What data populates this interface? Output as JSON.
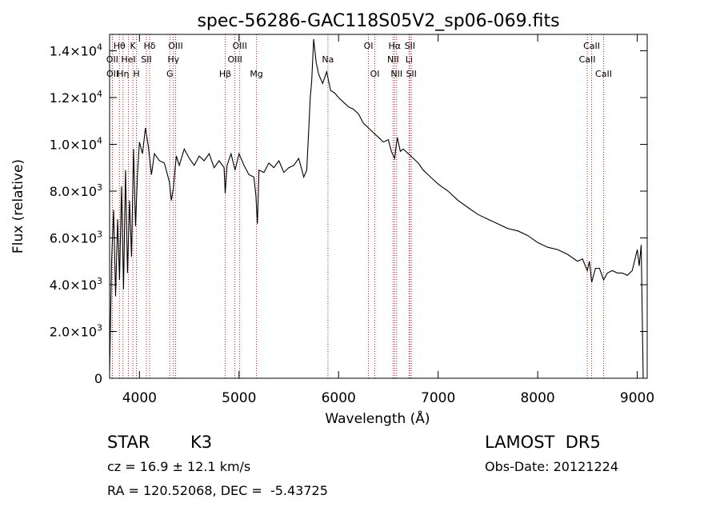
{
  "chart_data": {
    "type": "line",
    "title": "spec-56286-GAC118S05V2_sp06-069.fits",
    "xlabel": "Wavelength (Å)",
    "ylabel": "Flux (relative)",
    "xlim": [
      3700,
      9100
    ],
    "ylim": [
      0,
      14700
    ],
    "xticks": [
      {
        "value": 4000,
        "label": "4000"
      },
      {
        "value": 5000,
        "label": "5000"
      },
      {
        "value": 6000,
        "label": "6000"
      },
      {
        "value": 7000,
        "label": "7000"
      },
      {
        "value": 8000,
        "label": "8000"
      },
      {
        "value": 9000,
        "label": "9000"
      }
    ],
    "yticks": [
      {
        "value": 0,
        "mant": "0",
        "exp": ""
      },
      {
        "value": 2000,
        "mant": "2.0×10",
        "exp": "3"
      },
      {
        "value": 4000,
        "mant": "4.0×10",
        "exp": "3"
      },
      {
        "value": 6000,
        "mant": "6.0×10",
        "exp": "3"
      },
      {
        "value": 8000,
        "mant": "8.0×10",
        "exp": "3"
      },
      {
        "value": 10000,
        "mant": "1.0×10",
        "exp": "4"
      },
      {
        "value": 12000,
        "mant": "1.2×10",
        "exp": "4"
      },
      {
        "value": 14000,
        "mant": "1.4×10",
        "exp": "4"
      }
    ],
    "grid": false,
    "line_color": "#000000",
    "marker_color": "#b22222",
    "spectrum": {
      "x": [
        3700,
        3720,
        3740,
        3760,
        3780,
        3800,
        3820,
        3840,
        3860,
        3880,
        3900,
        3920,
        3940,
        3960,
        3980,
        4000,
        4030,
        4060,
        4090,
        4120,
        4150,
        4200,
        4250,
        4300,
        4320,
        4340,
        4370,
        4400,
        4450,
        4500,
        4550,
        4600,
        4650,
        4700,
        4750,
        4800,
        4850,
        4861,
        4880,
        4920,
        4960,
        5000,
        5050,
        5100,
        5150,
        5170,
        5185,
        5200,
        5250,
        5300,
        5350,
        5400,
        5450,
        5500,
        5550,
        5600,
        5650,
        5680,
        5700,
        5715,
        5730,
        5750,
        5775,
        5800,
        5840,
        5880,
        5920,
        5960,
        6000,
        6050,
        6100,
        6150,
        6200,
        6250,
        6300,
        6350,
        6400,
        6450,
        6500,
        6530,
        6563,
        6590,
        6620,
        6650,
        6700,
        6750,
        6800,
        6850,
        6900,
        6950,
        7000,
        7100,
        7200,
        7300,
        7400,
        7500,
        7600,
        7700,
        7800,
        7900,
        8000,
        8100,
        8200,
        8300,
        8400,
        8450,
        8498,
        8520,
        8542,
        8580,
        8620,
        8662,
        8700,
        8750,
        8800,
        8850,
        8900,
        8950,
        9000,
        9020,
        9040,
        9060
      ],
      "y": [
        300,
        5000,
        7200,
        3500,
        6800,
        4200,
        8200,
        3800,
        8900,
        4500,
        7600,
        5200,
        9800,
        6500,
        8700,
        10100,
        9600,
        10700,
        9900,
        8700,
        9600,
        9300,
        9200,
        8400,
        7600,
        8100,
        9500,
        9100,
        9800,
        9400,
        9100,
        9500,
        9300,
        9600,
        9000,
        9300,
        9000,
        7900,
        9100,
        9600,
        8900,
        9600,
        9100,
        8700,
        8600,
        7800,
        6600,
        8900,
        8800,
        9200,
        9000,
        9300,
        8800,
        9000,
        9100,
        9400,
        8600,
        8900,
        10600,
        12000,
        12700,
        14500,
        13500,
        13000,
        12600,
        13100,
        12300,
        12200,
        12000,
        11800,
        11600,
        11500,
        11300,
        10900,
        10700,
        10500,
        10300,
        10100,
        10200,
        9700,
        9400,
        10300,
        9700,
        9800,
        9600,
        9400,
        9200,
        8900,
        8700,
        8500,
        8300,
        8000,
        7600,
        7300,
        7000,
        6800,
        6600,
        6400,
        6300,
        6100,
        5800,
        5600,
        5500,
        5300,
        5000,
        5100,
        4600,
        5000,
        4100,
        4700,
        4700,
        4200,
        4500,
        4600,
        4500,
        4500,
        4400,
        4600,
        5500,
        4800,
        5700,
        0
      ]
    },
    "lines": [
      {
        "label": "Hθ",
        "wave": 3798,
        "row": 0
      },
      {
        "label": "OII",
        "wave": 3727,
        "row": 1
      },
      {
        "label": "OII",
        "wave": 3729,
        "row": 2
      },
      {
        "label": "K",
        "wave": 3934,
        "row": 0
      },
      {
        "label": "HeI",
        "wave": 3889,
        "row": 1
      },
      {
        "label": "Hη",
        "wave": 3835,
        "row": 2
      },
      {
        "label": "H",
        "wave": 3969,
        "row": 2
      },
      {
        "label": "Hδ",
        "wave": 4102,
        "row": 0
      },
      {
        "label": "SII",
        "wave": 4070,
        "row": 1
      },
      {
        "label": "OIII",
        "wave": 4363,
        "row": 0
      },
      {
        "label": "Hγ",
        "wave": 4341,
        "row": 1
      },
      {
        "label": "G",
        "wave": 4305,
        "row": 2
      },
      {
        "label": "Hβ",
        "wave": 4861,
        "row": 2
      },
      {
        "label": "OIII",
        "wave": 5007,
        "row": 0
      },
      {
        "label": "OIII",
        "wave": 4959,
        "row": 1
      },
      {
        "label": "Mg",
        "wave": 5175,
        "row": 2
      },
      {
        "label": "Na",
        "wave": 5893,
        "row": 1
      },
      {
        "label": "OI",
        "wave": 6300,
        "row": 0
      },
      {
        "label": "OI",
        "wave": 6364,
        "row": 2
      },
      {
        "label": "Hα",
        "wave": 6563,
        "row": 0
      },
      {
        "label": "NII",
        "wave": 6548,
        "row": 1
      },
      {
        "label": "NII",
        "wave": 6583,
        "row": 2
      },
      {
        "label": "SII",
        "wave": 6716,
        "row": 0
      },
      {
        "label": "Li",
        "wave": 6708,
        "row": 1
      },
      {
        "label": "SII",
        "wave": 6731,
        "row": 2
      },
      {
        "label": "CaII",
        "wave": 8542,
        "row": 0
      },
      {
        "label": "CaII",
        "wave": 8498,
        "row": 1
      },
      {
        "label": "CaII",
        "wave": 8662,
        "row": 2
      }
    ]
  },
  "info": {
    "object_class": "STAR",
    "subclass": "K3",
    "survey": "LAMOST  DR5",
    "cz": "cz = 16.9 ± 12.1 km/s",
    "obs_date": "Obs-Date: 20121224",
    "coords": "RA = 120.52068, DEC =  -5.43725"
  }
}
